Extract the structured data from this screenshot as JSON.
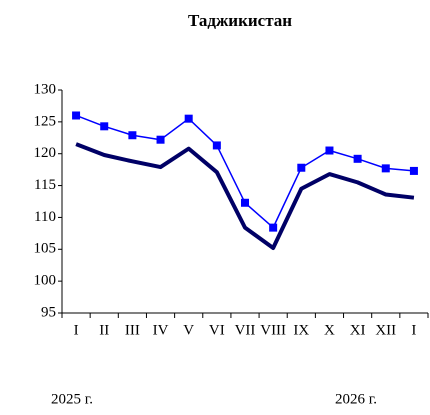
{
  "chart_data": {
    "type": "line",
    "title": "Таджикистан",
    "categories": [
      "I",
      "II",
      "III",
      "IV",
      "V",
      "VI",
      "VII",
      "VIII",
      "IX",
      "X",
      "XI",
      "XII",
      "I"
    ],
    "series": [
      {
        "color": "#0000ff",
        "marker": "square",
        "values": [
          126,
          124.3,
          122.9,
          122.2,
          125.5,
          121.3,
          112.3,
          108.4,
          117.8,
          120.5,
          119.2,
          117.7,
          117.3
        ]
      },
      {
        "color": "#000066",
        "values": [
          121.5,
          119.8,
          118.8,
          117.9,
          120.8,
          117.1,
          108.4,
          105.2,
          114.5,
          116.8,
          115.5,
          113.6,
          113.1
        ]
      }
    ],
    "annotations": [
      "2025 г.",
      "2026 г."
    ],
    "ylim": [
      95,
      130
    ],
    "yticks": [
      95,
      100,
      105,
      110,
      115,
      120,
      125,
      130
    ],
    "grid": false
  }
}
